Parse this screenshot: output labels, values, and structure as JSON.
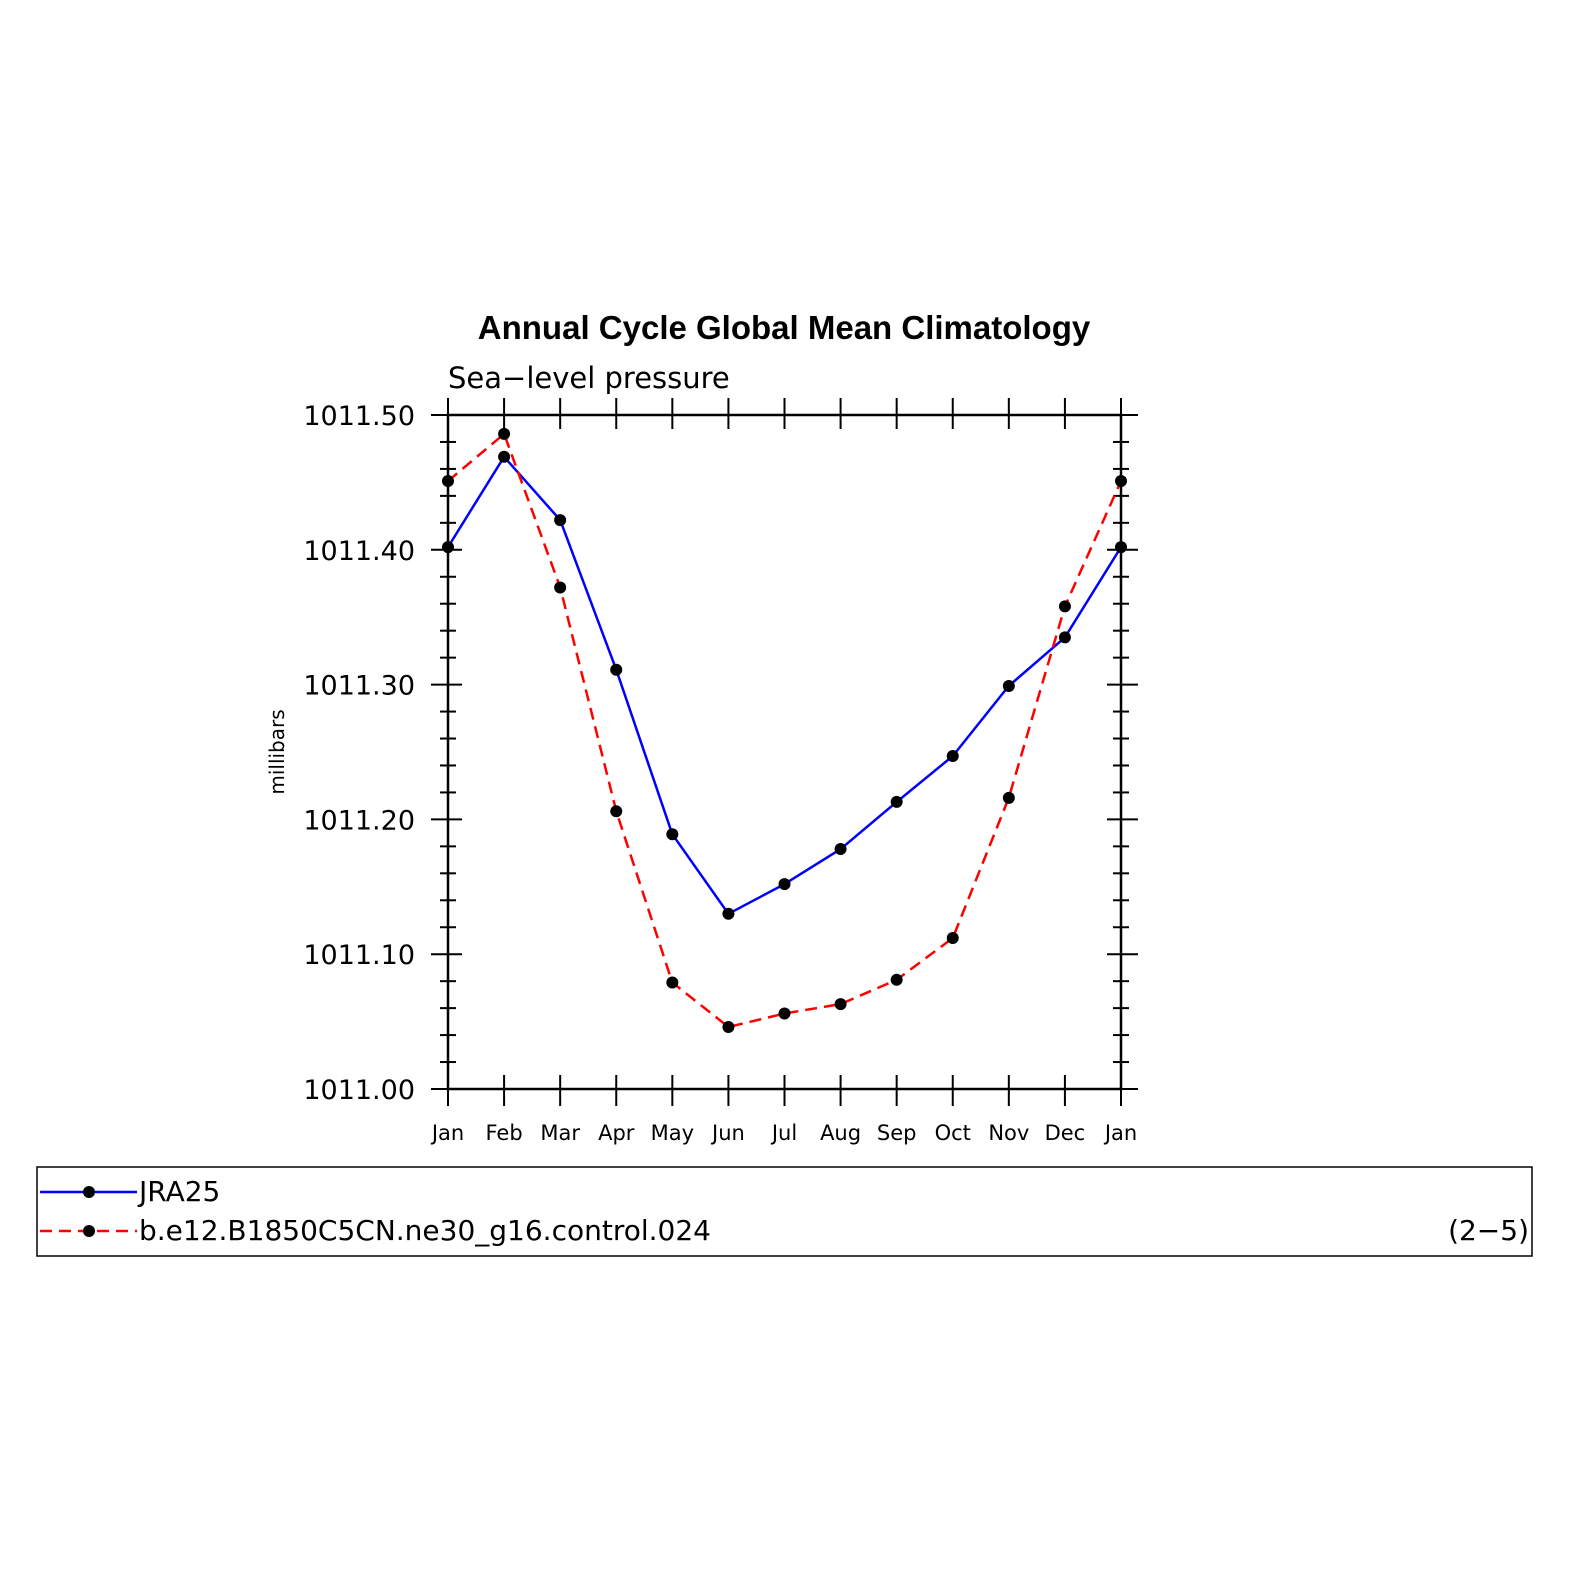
{
  "chart_data": {
    "type": "line",
    "title": "Annual Cycle Global Mean Climatology",
    "subtitle": "Sea−level pressure",
    "xlabel": "",
    "ylabel": "millibars",
    "categories": [
      "Jan",
      "Feb",
      "Mar",
      "Apr",
      "May",
      "Jun",
      "Jul",
      "Aug",
      "Sep",
      "Oct",
      "Nov",
      "Dec",
      "Jan"
    ],
    "ylim": [
      1011.0,
      1011.5
    ],
    "yticks": [
      "1011.00",
      "1011.10",
      "1011.20",
      "1011.30",
      "1011.40",
      "1011.50"
    ],
    "series": [
      {
        "name": "JRA25",
        "color": "#0000ff",
        "dash": "solid",
        "values": [
          1011.402,
          1011.469,
          1011.422,
          1011.311,
          1011.189,
          1011.13,
          1011.152,
          1011.178,
          1011.213,
          1011.247,
          1011.299,
          1011.335,
          1011.402
        ]
      },
      {
        "name": "b.e12.B1850C5CN.ne30_g16.control.024",
        "color": "#ff0000",
        "dash": "dashed",
        "values": [
          1011.451,
          1011.486,
          1011.372,
          1011.206,
          1011.079,
          1011.046,
          1011.056,
          1011.063,
          1011.081,
          1011.112,
          1011.216,
          1011.358,
          1011.451
        ]
      }
    ],
    "legend_placement": "bottom",
    "panel_label": "(2−5)"
  }
}
